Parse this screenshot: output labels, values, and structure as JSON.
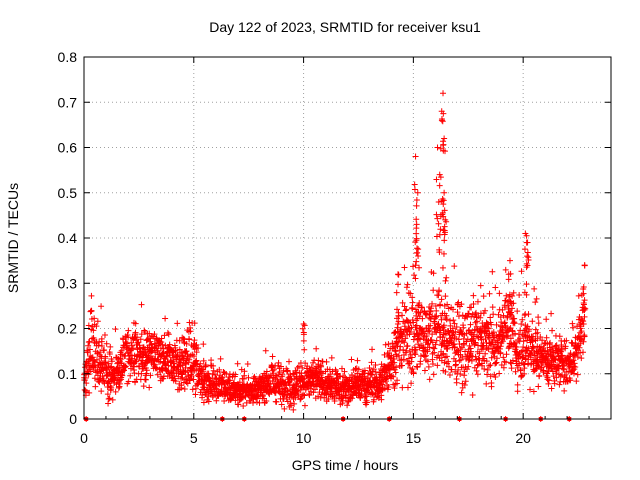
{
  "chart_data": {
    "type": "scatter",
    "title": "Day 122 of 2023, SRMTID for receiver ksu1",
    "xlabel": "GPS time / hours",
    "ylabel": "SRMTID / TECUs",
    "xlim": [
      0,
      24
    ],
    "ylim": [
      0,
      0.8
    ],
    "grid": true,
    "marker": "+",
    "x_ticks": [
      0,
      5,
      10,
      15,
      20
    ],
    "x_tick_labels": [
      "0",
      "5",
      "10",
      "15",
      "20"
    ],
    "y_ticks": [
      0,
      0.1,
      0.2,
      0.3,
      0.4,
      0.5,
      0.6,
      0.7,
      0.8
    ],
    "y_tick_labels": [
      "0",
      "0.1",
      "0.2",
      "0.3",
      "0.4",
      "0.5",
      "0.6",
      "0.7",
      "0.8"
    ],
    "series": [
      {
        "name": "ksu1",
        "color": "#ff0000",
        "envelope": [
          {
            "t": 0.0,
            "mean": 0.08,
            "spread": 0.03
          },
          {
            "t": 0.3,
            "mean": 0.16,
            "spread": 0.06
          },
          {
            "t": 0.8,
            "mean": 0.11,
            "spread": 0.04
          },
          {
            "t": 1.3,
            "mean": 0.09,
            "spread": 0.03
          },
          {
            "t": 2.0,
            "mean": 0.14,
            "spread": 0.04
          },
          {
            "t": 2.8,
            "mean": 0.14,
            "spread": 0.04
          },
          {
            "t": 3.5,
            "mean": 0.13,
            "spread": 0.04
          },
          {
            "t": 4.3,
            "mean": 0.12,
            "spread": 0.04
          },
          {
            "t": 5.0,
            "mean": 0.13,
            "spread": 0.05
          },
          {
            "t": 5.5,
            "mean": 0.08,
            "spread": 0.03
          },
          {
            "t": 6.5,
            "mean": 0.07,
            "spread": 0.02
          },
          {
            "t": 7.5,
            "mean": 0.06,
            "spread": 0.02
          },
          {
            "t": 8.5,
            "mean": 0.08,
            "spread": 0.025
          },
          {
            "t": 9.5,
            "mean": 0.07,
            "spread": 0.03
          },
          {
            "t": 10.5,
            "mean": 0.09,
            "spread": 0.03
          },
          {
            "t": 11.5,
            "mean": 0.07,
            "spread": 0.025
          },
          {
            "t": 12.5,
            "mean": 0.07,
            "spread": 0.025
          },
          {
            "t": 13.5,
            "mean": 0.08,
            "spread": 0.025
          },
          {
            "t": 14.2,
            "mean": 0.15,
            "spread": 0.05
          },
          {
            "t": 15.0,
            "mean": 0.2,
            "spread": 0.08
          },
          {
            "t": 15.5,
            "mean": 0.18,
            "spread": 0.06
          },
          {
            "t": 16.0,
            "mean": 0.2,
            "spread": 0.07
          },
          {
            "t": 16.5,
            "mean": 0.17,
            "spread": 0.06
          },
          {
            "t": 17.3,
            "mean": 0.16,
            "spread": 0.06
          },
          {
            "t": 18.0,
            "mean": 0.18,
            "spread": 0.06
          },
          {
            "t": 18.7,
            "mean": 0.15,
            "spread": 0.05
          },
          {
            "t": 19.3,
            "mean": 0.22,
            "spread": 0.06
          },
          {
            "t": 19.7,
            "mean": 0.15,
            "spread": 0.05
          },
          {
            "t": 20.2,
            "mean": 0.17,
            "spread": 0.06
          },
          {
            "t": 20.8,
            "mean": 0.13,
            "spread": 0.04
          },
          {
            "t": 21.5,
            "mean": 0.13,
            "spread": 0.04
          },
          {
            "t": 22.2,
            "mean": 0.12,
            "spread": 0.03
          },
          {
            "t": 22.8,
            "mean": 0.22,
            "spread": 0.06
          }
        ],
        "peaks": [
          {
            "x": 15.1,
            "y": 0.58
          },
          {
            "x": 15.2,
            "y": 0.5
          },
          {
            "x": 15.15,
            "y": 0.43
          },
          {
            "x": 16.1,
            "y": 0.6
          },
          {
            "x": 16.2,
            "y": 0.54
          },
          {
            "x": 16.3,
            "y": 0.66
          },
          {
            "x": 16.35,
            "y": 0.72
          },
          {
            "x": 16.4,
            "y": 0.62
          },
          {
            "x": 16.4,
            "y": 0.5
          },
          {
            "x": 16.45,
            "y": 0.44
          },
          {
            "x": 19.4,
            "y": 0.35
          },
          {
            "x": 20.1,
            "y": 0.41
          },
          {
            "x": 20.2,
            "y": 0.39
          },
          {
            "x": 22.8,
            "y": 0.34
          },
          {
            "x": 10.0,
            "y": 0.21
          },
          {
            "x": 14.3,
            "y": 0.32
          }
        ],
        "zero_markers": [
          0.1,
          6.3,
          7.3,
          11.8,
          13.9,
          17.1,
          19.2,
          20.8,
          22.1
        ]
      }
    ]
  }
}
